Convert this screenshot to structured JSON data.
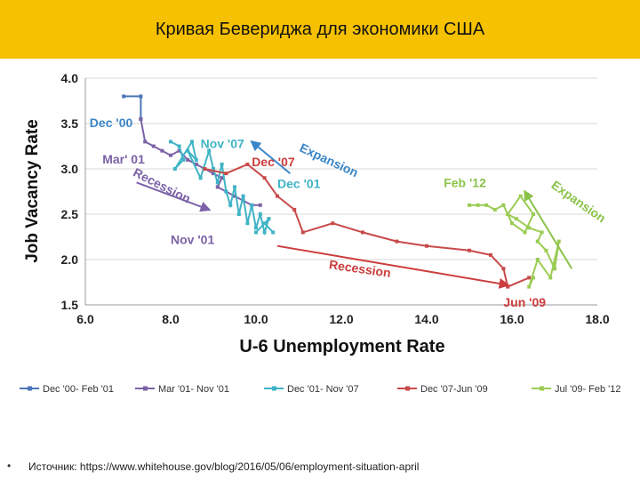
{
  "slide": {
    "title": "Кривая Бевериджа для экономики США",
    "bullet": "•",
    "source": "Источник: https://www.whitehouse.gov/blog/2016/05/06/employment-situation-april"
  },
  "chart_data": {
    "type": "line",
    "xlabel": "U-6 Unemployment Rate",
    "ylabel": "Job Vacancy Rate",
    "xlim": [
      6.0,
      18.0
    ],
    "ylim": [
      1.5,
      4.0
    ],
    "xticks": [
      "6.0",
      "8.0",
      "10.0",
      "12.0",
      "14.0",
      "16.0",
      "18.0"
    ],
    "yticks": [
      "1.5",
      "2.0",
      "2.5",
      "3.0",
      "3.5",
      "4.0"
    ],
    "grid": "horizontal",
    "legend_position": "bottom",
    "series": [
      {
        "name": "Dec '00- Feb '01",
        "color": "#4a76b8",
        "points": [
          [
            6.9,
            3.8
          ],
          [
            7.3,
            3.8
          ],
          [
            7.3,
            3.55
          ]
        ]
      },
      {
        "name": "Mar '01- Nov '01",
        "color": "#7b62a6",
        "points": [
          [
            7.3,
            3.55
          ],
          [
            7.4,
            3.3
          ],
          [
            7.6,
            3.25
          ],
          [
            7.8,
            3.2
          ],
          [
            8.0,
            3.15
          ],
          [
            8.2,
            3.2
          ],
          [
            8.4,
            3.1
          ],
          [
            8.6,
            3.05
          ],
          [
            8.8,
            3.0
          ],
          [
            9.0,
            2.95
          ],
          [
            9.2,
            2.9
          ],
          [
            9.1,
            2.8
          ],
          [
            9.3,
            2.75
          ],
          [
            9.5,
            2.7
          ],
          [
            9.7,
            2.65
          ],
          [
            9.9,
            2.6
          ],
          [
            10.1,
            2.6
          ]
        ]
      },
      {
        "name": "Dec '01- Nov '07",
        "color": "#3fb4c6",
        "points": [
          [
            8.0,
            3.3
          ],
          [
            8.2,
            3.25
          ],
          [
            8.3,
            3.1
          ],
          [
            8.1,
            3.0
          ],
          [
            8.5,
            3.3
          ],
          [
            8.6,
            3.1
          ],
          [
            8.4,
            3.2
          ],
          [
            8.7,
            2.9
          ],
          [
            8.9,
            3.2
          ],
          [
            9.0,
            3.0
          ],
          [
            9.1,
            2.85
          ],
          [
            9.2,
            3.05
          ],
          [
            9.3,
            2.75
          ],
          [
            9.4,
            2.6
          ],
          [
            9.5,
            2.8
          ],
          [
            9.6,
            2.5
          ],
          [
            9.7,
            2.7
          ],
          [
            9.8,
            2.4
          ],
          [
            9.9,
            2.6
          ],
          [
            10.0,
            2.35
          ],
          [
            10.1,
            2.5
          ],
          [
            10.2,
            2.3
          ],
          [
            10.3,
            2.45
          ],
          [
            10.0,
            2.3
          ],
          [
            10.2,
            2.4
          ],
          [
            10.4,
            2.3
          ]
        ]
      },
      {
        "name": "Dec '07-Jun '09",
        "color": "#c84a4a",
        "points": [
          [
            8.8,
            3.0
          ],
          [
            9.3,
            2.95
          ],
          [
            9.8,
            3.05
          ],
          [
            10.2,
            2.9
          ],
          [
            10.5,
            2.7
          ],
          [
            10.9,
            2.55
          ],
          [
            11.1,
            2.3
          ],
          [
            11.8,
            2.4
          ],
          [
            12.5,
            2.3
          ],
          [
            13.3,
            2.2
          ],
          [
            14.0,
            2.15
          ],
          [
            15.0,
            2.1
          ],
          [
            15.5,
            2.05
          ],
          [
            15.8,
            1.9
          ],
          [
            15.9,
            1.7
          ],
          [
            16.4,
            1.8
          ]
        ]
      },
      {
        "name": "Jul '09- Feb '12",
        "color": "#9acc53",
        "points": [
          [
            16.5,
            1.8
          ],
          [
            16.4,
            1.7
          ],
          [
            16.6,
            2.0
          ],
          [
            16.9,
            1.8
          ],
          [
            17.1,
            2.2
          ],
          [
            17.0,
            1.9
          ],
          [
            16.8,
            2.1
          ],
          [
            16.6,
            2.2
          ],
          [
            16.7,
            2.3
          ],
          [
            16.4,
            2.35
          ],
          [
            16.1,
            2.45
          ],
          [
            15.9,
            2.5
          ],
          [
            16.2,
            2.7
          ],
          [
            16.5,
            2.5
          ],
          [
            16.3,
            2.3
          ],
          [
            16.0,
            2.4
          ],
          [
            15.8,
            2.6
          ],
          [
            15.6,
            2.55
          ],
          [
            15.4,
            2.6
          ],
          [
            15.2,
            2.6
          ],
          [
            15.0,
            2.6
          ]
        ]
      }
    ],
    "annotations": [
      {
        "text": "Dec '00",
        "color": "#3a86c8",
        "x": 6.1,
        "y": 3.46
      },
      {
        "text": "Mar' 01",
        "color": "#7b62a6",
        "x": 6.4,
        "y": 3.06
      },
      {
        "text": "Nov '07",
        "color": "#3fb4c6",
        "x": 8.7,
        "y": 3.23
      },
      {
        "text": "Dec '07",
        "color": "#cc3c3c",
        "x": 9.9,
        "y": 3.03
      },
      {
        "text": "Dec '01",
        "color": "#3fb4c6",
        "x": 10.5,
        "y": 2.79
      },
      {
        "text": "Nov '01",
        "color": "#7b62a6",
        "x": 8.0,
        "y": 2.17
      },
      {
        "text": "Feb '12",
        "color": "#8bc34a",
        "x": 14.4,
        "y": 2.8
      },
      {
        "text": "Jun '09",
        "color": "#cc3c3c",
        "x": 15.8,
        "y": 1.48
      },
      {
        "text": "Expansion",
        "color": "#3a86c8",
        "x": 11.0,
        "y": 3.2,
        "rotate": 25
      },
      {
        "text": "Recession",
        "color": "#7b62a6",
        "x": 7.1,
        "y": 2.93,
        "rotate": 27
      },
      {
        "text": "Recession",
        "color": "#cc3c3c",
        "x": 11.7,
        "y": 1.9,
        "rotate": 8
      },
      {
        "text": "Expansion",
        "color": "#8bc34a",
        "x": 16.9,
        "y": 2.8,
        "rotate": 35
      }
    ],
    "trend_arrows": [
      {
        "color": "#3a86c8",
        "from": [
          10.8,
          2.95
        ],
        "to": [
          9.9,
          3.3
        ]
      },
      {
        "color": "#7b62a6",
        "from": [
          7.2,
          2.85
        ],
        "to": [
          8.9,
          2.55
        ]
      },
      {
        "color": "#cc3c3c",
        "from": [
          10.5,
          2.15
        ],
        "to": [
          15.9,
          1.72
        ]
      },
      {
        "color": "#8bc34a",
        "from": [
          17.4,
          1.9
        ],
        "to": [
          16.3,
          2.75
        ]
      }
    ]
  }
}
